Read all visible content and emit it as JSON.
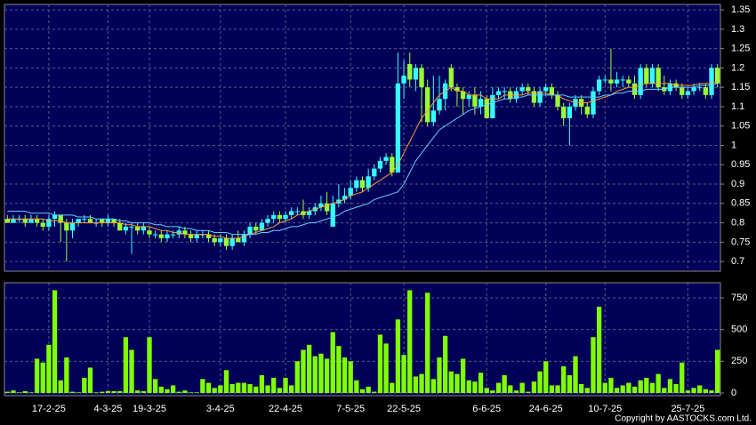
{
  "chart_data": [
    {
      "type": "candlestick",
      "up_color": "#33ffff",
      "down_color": "#99ff33",
      "ylim": [
        0.675,
        1.364
      ],
      "yticks": [
        0.7,
        0.75,
        0.8,
        0.85,
        0.9,
        0.95,
        1,
        1.05,
        1.1,
        1.15,
        1.2,
        1.25,
        1.3,
        1.35
      ],
      "grid": true,
      "open": [
        0.81,
        0.8,
        0.81,
        0.81,
        0.8,
        0.81,
        0.8,
        0.79,
        0.81,
        0.82,
        0.8,
        0.78,
        0.8,
        0.81,
        0.81,
        0.8,
        0.81,
        0.8,
        0.81,
        0.8,
        0.78,
        0.79,
        0.79,
        0.78,
        0.78,
        0.77,
        0.77,
        0.76,
        0.77,
        0.77,
        0.78,
        0.77,
        0.76,
        0.77,
        0.77,
        0.76,
        0.75,
        0.76,
        0.74,
        0.76,
        0.75,
        0.77,
        0.79,
        0.78,
        0.8,
        0.81,
        0.82,
        0.81,
        0.82,
        0.83,
        0.83,
        0.82,
        0.83,
        0.84,
        0.85,
        0.79,
        0.85,
        0.86,
        0.87,
        0.89,
        0.91,
        0.89,
        0.92,
        0.94,
        0.96,
        0.97,
        0.93,
        1.16,
        1.21,
        1.17,
        1.2,
        1.15,
        1.06,
        1.09,
        1.12,
        1.2,
        1.15,
        1.14,
        1.12,
        1.13,
        1.1,
        1.12,
        1.07,
        1.13,
        1.14,
        1.14,
        1.12,
        1.14,
        1.15,
        1.14,
        1.11,
        1.14,
        1.15,
        1.13,
        1.1,
        1.07,
        1.1,
        1.12,
        1.1,
        1.08,
        1.14,
        1.17,
        1.17,
        1.16,
        1.17,
        1.17,
        1.16,
        1.13,
        1.2,
        1.16,
        1.2,
        1.15,
        1.14,
        1.16,
        1.15,
        1.13,
        1.14,
        1.15,
        1.15,
        1.13,
        1.2
      ],
      "high": [
        0.82,
        0.82,
        0.82,
        0.82,
        0.82,
        0.82,
        0.81,
        0.82,
        0.83,
        0.82,
        0.81,
        0.81,
        0.81,
        0.82,
        0.82,
        0.81,
        0.81,
        0.82,
        0.81,
        0.81,
        0.8,
        0.8,
        0.8,
        0.8,
        0.79,
        0.78,
        0.78,
        0.78,
        0.78,
        0.79,
        0.79,
        0.78,
        0.78,
        0.78,
        0.78,
        0.77,
        0.77,
        0.77,
        0.77,
        0.78,
        0.78,
        0.8,
        0.8,
        0.81,
        0.82,
        0.83,
        0.83,
        0.83,
        0.84,
        0.84,
        0.86,
        0.84,
        0.85,
        0.87,
        0.88,
        0.87,
        0.9,
        0.89,
        0.91,
        0.92,
        0.92,
        0.94,
        0.95,
        0.97,
        0.98,
        0.98,
        1.24,
        1.22,
        1.24,
        1.21,
        1.21,
        1.17,
        1.18,
        1.18,
        1.17,
        1.21,
        1.16,
        1.15,
        1.14,
        1.15,
        1.14,
        1.13,
        1.15,
        1.15,
        1.15,
        1.15,
        1.15,
        1.16,
        1.16,
        1.15,
        1.15,
        1.16,
        1.16,
        1.14,
        1.11,
        1.11,
        1.13,
        1.13,
        1.11,
        1.15,
        1.18,
        1.18,
        1.25,
        1.19,
        1.18,
        1.18,
        1.18,
        1.21,
        1.21,
        1.21,
        1.21,
        1.18,
        1.17,
        1.17,
        1.16,
        1.15,
        1.16,
        1.16,
        1.16,
        1.21,
        1.21
      ],
      "low": [
        0.8,
        0.8,
        0.8,
        0.79,
        0.8,
        0.79,
        0.78,
        0.78,
        0.79,
        0.75,
        0.7,
        0.76,
        0.79,
        0.8,
        0.8,
        0.79,
        0.79,
        0.79,
        0.79,
        0.78,
        0.77,
        0.72,
        0.77,
        0.77,
        0.76,
        0.76,
        0.75,
        0.75,
        0.76,
        0.76,
        0.76,
        0.75,
        0.75,
        0.76,
        0.75,
        0.74,
        0.74,
        0.73,
        0.73,
        0.75,
        0.74,
        0.76,
        0.77,
        0.78,
        0.79,
        0.8,
        0.8,
        0.8,
        0.81,
        0.82,
        0.81,
        0.81,
        0.82,
        0.83,
        0.82,
        0.79,
        0.84,
        0.85,
        0.86,
        0.88,
        0.88,
        0.88,
        0.91,
        0.93,
        0.95,
        0.92,
        0.93,
        1.12,
        1.15,
        1.14,
        1.06,
        1.05,
        1.05,
        1.08,
        1.09,
        1.14,
        1.1,
        1.08,
        1.1,
        1.08,
        1.08,
        1.07,
        1.07,
        1.12,
        1.12,
        1.11,
        1.11,
        1.13,
        1.13,
        1.1,
        1.1,
        1.13,
        1.12,
        1.09,
        1.05,
        1,
        1.09,
        1.08,
        1.07,
        1.07,
        1.13,
        1.16,
        1.14,
        1.15,
        1.15,
        1.15,
        1.12,
        1.12,
        1.15,
        1.15,
        1.14,
        1.13,
        1.13,
        1.14,
        1.12,
        1.12,
        1.13,
        1.14,
        1.12,
        1.12,
        1.15
      ],
      "close": [
        0.8,
        0.81,
        0.81,
        0.8,
        0.81,
        0.8,
        0.79,
        0.81,
        0.82,
        0.8,
        0.78,
        0.8,
        0.81,
        0.81,
        0.8,
        0.8,
        0.8,
        0.81,
        0.8,
        0.78,
        0.79,
        0.79,
        0.78,
        0.79,
        0.77,
        0.77,
        0.76,
        0.77,
        0.77,
        0.78,
        0.77,
        0.76,
        0.77,
        0.77,
        0.76,
        0.75,
        0.76,
        0.74,
        0.76,
        0.75,
        0.77,
        0.79,
        0.78,
        0.8,
        0.81,
        0.82,
        0.81,
        0.82,
        0.83,
        0.83,
        0.82,
        0.83,
        0.84,
        0.85,
        0.83,
        0.85,
        0.86,
        0.87,
        0.89,
        0.91,
        0.89,
        0.92,
        0.94,
        0.96,
        0.97,
        0.93,
        1.16,
        1.18,
        1.17,
        1.2,
        1.15,
        1.06,
        1.09,
        1.12,
        1.16,
        1.15,
        1.14,
        1.12,
        1.13,
        1.1,
        1.12,
        1.07,
        1.13,
        1.14,
        1.14,
        1.12,
        1.14,
        1.15,
        1.14,
        1.11,
        1.14,
        1.15,
        1.13,
        1.1,
        1.07,
        1.1,
        1.12,
        1.1,
        1.08,
        1.14,
        1.17,
        1.17,
        1.16,
        1.17,
        1.17,
        1.16,
        1.13,
        1.2,
        1.16,
        1.2,
        1.15,
        1.14,
        1.16,
        1.15,
        1.13,
        1.14,
        1.15,
        1.15,
        1.13,
        1.2,
        1.16
      ],
      "lines": [
        {
          "color": "#ff9933",
          "values": [
            0.81,
            0.81,
            0.81,
            0.81,
            0.81,
            0.81,
            0.81,
            0.805,
            0.805,
            0.805,
            0.8,
            0.8,
            0.8,
            0.8,
            0.8,
            0.8,
            0.8,
            0.8,
            0.8,
            0.8,
            0.795,
            0.795,
            0.79,
            0.79,
            0.79,
            0.785,
            0.78,
            0.78,
            0.775,
            0.775,
            0.77,
            0.77,
            0.77,
            0.77,
            0.77,
            0.765,
            0.765,
            0.76,
            0.76,
            0.76,
            0.765,
            0.77,
            0.775,
            0.78,
            0.785,
            0.79,
            0.8,
            0.805,
            0.81,
            0.82,
            0.825,
            0.83,
            0.835,
            0.84,
            0.845,
            0.85,
            0.855,
            0.86,
            0.87,
            0.875,
            0.88,
            0.89,
            0.9,
            0.91,
            0.92,
            0.93,
            0.95,
            0.98,
            1.01,
            1.04,
            1.07,
            1.09,
            1.11,
            1.13,
            1.14,
            1.15,
            1.14,
            1.14,
            1.13,
            1.13,
            1.13,
            1.12,
            1.12,
            1.12,
            1.13,
            1.13,
            1.13,
            1.13,
            1.135,
            1.135,
            1.135,
            1.135,
            1.13,
            1.13,
            1.12,
            1.115,
            1.11,
            1.11,
            1.11,
            1.115,
            1.12,
            1.125,
            1.13,
            1.14,
            1.145,
            1.15,
            1.15,
            1.155,
            1.16,
            1.16,
            1.16,
            1.16,
            1.16,
            1.155,
            1.155,
            1.155,
            1.155,
            1.16,
            1.16,
            1.16,
            1.165
          ]
        },
        {
          "color": "#66ccff",
          "values": [
            0.83,
            0.83,
            0.83,
            0.83,
            0.825,
            0.825,
            0.825,
            0.825,
            0.82,
            0.82,
            0.82,
            0.82,
            0.815,
            0.815,
            0.815,
            0.81,
            0.81,
            0.81,
            0.81,
            0.805,
            0.805,
            0.8,
            0.8,
            0.8,
            0.8,
            0.795,
            0.795,
            0.79,
            0.79,
            0.79,
            0.785,
            0.785,
            0.78,
            0.78,
            0.78,
            0.775,
            0.775,
            0.775,
            0.77,
            0.77,
            0.77,
            0.77,
            0.77,
            0.775,
            0.775,
            0.78,
            0.78,
            0.785,
            0.79,
            0.79,
            0.795,
            0.8,
            0.8,
            0.805,
            0.81,
            0.815,
            0.82,
            0.83,
            0.835,
            0.84,
            0.845,
            0.85,
            0.86,
            0.865,
            0.87,
            0.875,
            0.88,
            0.9,
            0.93,
            0.96,
            0.98,
            1,
            1.02,
            1.04,
            1.05,
            1.06,
            1.07,
            1.08,
            1.09,
            1.095,
            1.1,
            1.105,
            1.11,
            1.115,
            1.12,
            1.12,
            1.125,
            1.125,
            1.13,
            1.13,
            1.13,
            1.13,
            1.13,
            1.13,
            1.13,
            1.125,
            1.125,
            1.125,
            1.125,
            1.125,
            1.125,
            1.13,
            1.13,
            1.135,
            1.135,
            1.14,
            1.14,
            1.14,
            1.145,
            1.145,
            1.145,
            1.145,
            1.15,
            1.15,
            1.15,
            1.15,
            1.15,
            1.155,
            1.155,
            1.155,
            1.16
          ]
        }
      ]
    },
    {
      "type": "bar",
      "color": "#80ff00",
      "ylim": [
        -21,
        869
      ],
      "yticks": [
        0,
        250,
        500,
        750
      ],
      "grid": true,
      "values": [
        10,
        20,
        5,
        15,
        5,
        270,
        240,
        380,
        810,
        100,
        280,
        10,
        5,
        120,
        200,
        5,
        10,
        15,
        15,
        15,
        440,
        340,
        20,
        15,
        440,
        110,
        50,
        30,
        60,
        10,
        20,
        5,
        5,
        110,
        80,
        40,
        60,
        180,
        70,
        80,
        80,
        70,
        50,
        140,
        60,
        120,
        40,
        120,
        60,
        250,
        340,
        380,
        290,
        310,
        270,
        480,
        370,
        280,
        250,
        100,
        30,
        50,
        10,
        460,
        390,
        80,
        580,
        300,
        810,
        130,
        150,
        790,
        110,
        280,
        450,
        170,
        150,
        270,
        100,
        90,
        160,
        40,
        20,
        80,
        140,
        60,
        20,
        80,
        10,
        90,
        170,
        250,
        60,
        60,
        210,
        140,
        290,
        70,
        40,
        440,
        680,
        80,
        120,
        40,
        60,
        80,
        50,
        100,
        120,
        80,
        150,
        40,
        110,
        70,
        240,
        20,
        40,
        60,
        30,
        20,
        340
      ],
      "xticks": [
        {
          "value": 7,
          "label": "17-2-25"
        },
        {
          "value": 17,
          "label": "4-3-25"
        },
        {
          "value": 24,
          "label": "19-3-25"
        },
        {
          "value": 36,
          "label": "3-4-25"
        },
        {
          "value": 47,
          "label": "22-4-25"
        },
        {
          "value": 58,
          "label": "7-5-25"
        },
        {
          "value": 67,
          "label": "22-5-25"
        },
        {
          "value": 81,
          "label": "6-6-25"
        },
        {
          "value": 91,
          "label": "24-6-25"
        },
        {
          "value": 101,
          "label": "10-7-25"
        },
        {
          "value": 115,
          "label": "25-7-25"
        }
      ]
    }
  ],
  "footer": "Copyright by AASTOCKS.com Ltd."
}
